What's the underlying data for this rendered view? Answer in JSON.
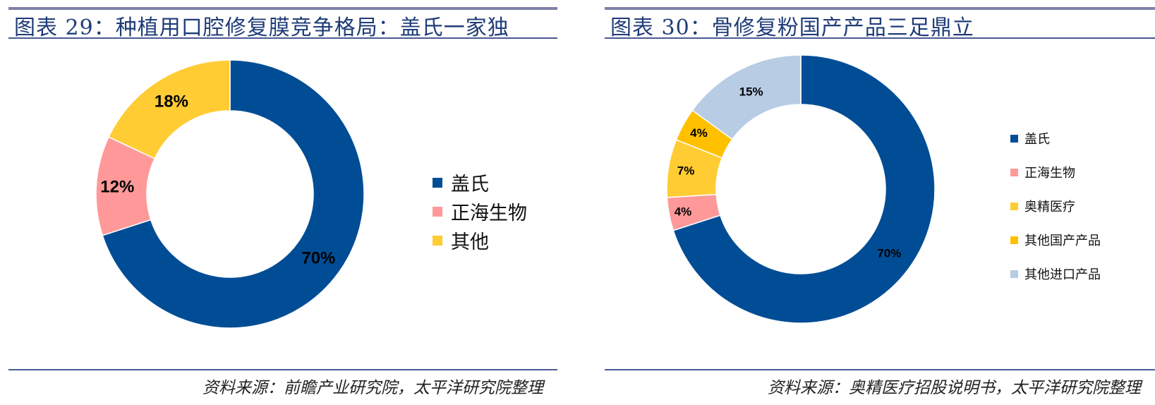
{
  "left": {
    "title": "图表 29：种植用口腔修复膜竞争格局：盖氏一家独",
    "source": "资料来源：前瞻产业研究院，太平洋研究院整理",
    "chart_data": {
      "type": "pie",
      "donut": true,
      "categories": [
        "盖氏",
        "正海生物",
        "其他"
      ],
      "values": [
        70,
        12,
        18
      ],
      "labels": [
        "70%",
        "12%",
        "18%"
      ],
      "colors": [
        "#004d96",
        "#ff9999",
        "#ffcc33"
      ],
      "legend_position": "right"
    }
  },
  "right": {
    "title": "图表 30：骨修复粉国产产品三足鼎立",
    "source": "资料来源：奥精医疗招股说明书，太平洋研究院整理",
    "chart_data": {
      "type": "pie",
      "donut": true,
      "categories": [
        "盖氏",
        "正海生物",
        "奥精医疗",
        "其他国产产品",
        "其他进口产品"
      ],
      "values": [
        70,
        4,
        7,
        4,
        15
      ],
      "labels": [
        "70%",
        "4%",
        "7%",
        "4%",
        "15%"
      ],
      "colors": [
        "#004d96",
        "#ff9999",
        "#ffcc33",
        "#ffc000",
        "#b8cce4"
      ],
      "legend_position": "right"
    }
  }
}
